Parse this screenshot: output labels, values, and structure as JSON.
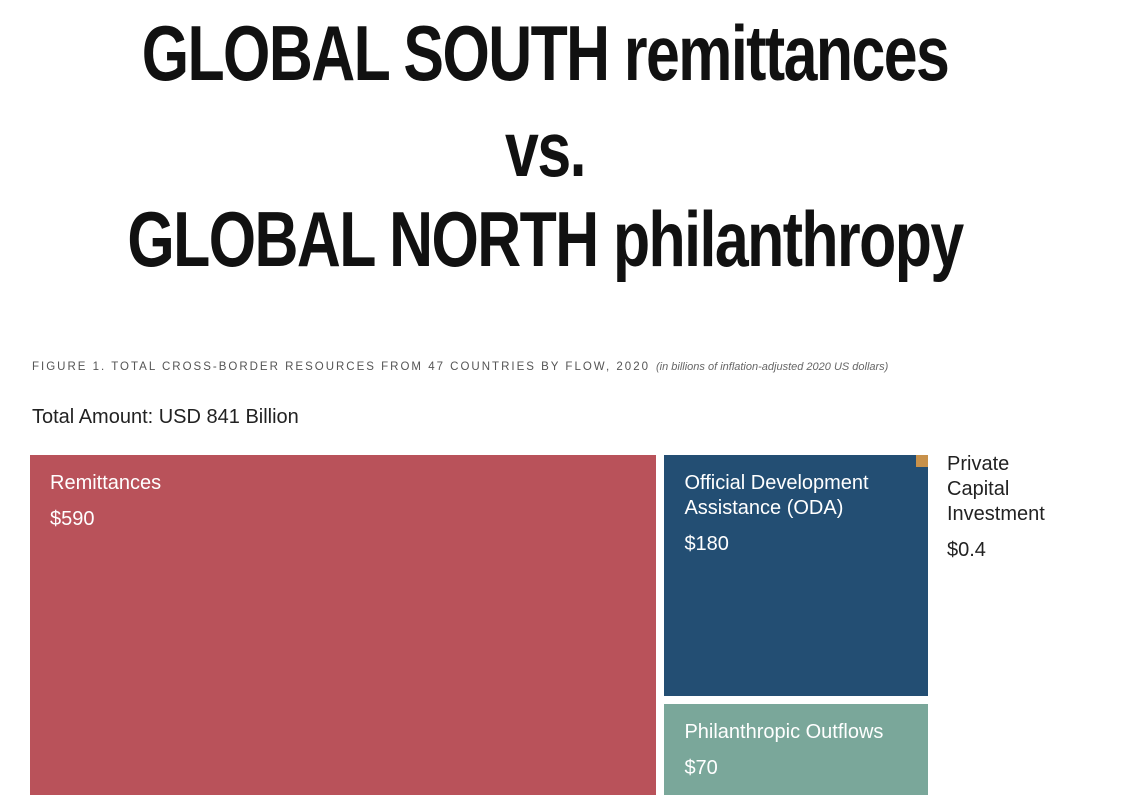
{
  "chart_data": {
    "type": "treemap",
    "title_lines": [
      "GLOBAL SOUTH remittances",
      "vs.",
      "GLOBAL NORTH philanthropy"
    ],
    "subtitle": "FIGURE 1. TOTAL CROSS-BORDER RESOURCES FROM 47 COUNTRIES BY FLOW, 2020",
    "note": "(in billions of inflation-adjusted 2020 US dollars)",
    "total_label": "Total Amount: USD 841 Billion",
    "categories": [
      "Remittances",
      "Official Development Assistance (ODA)",
      "Philanthropic Outflows",
      "Private Capital Investment"
    ],
    "values": [
      590,
      180,
      70,
      0.4
    ],
    "value_labels": [
      "$590",
      "$180",
      "$70",
      "$0.4"
    ],
    "colors": [
      "#b9525a",
      "#234e73",
      "#7aa79a",
      "#c8914a"
    ]
  }
}
